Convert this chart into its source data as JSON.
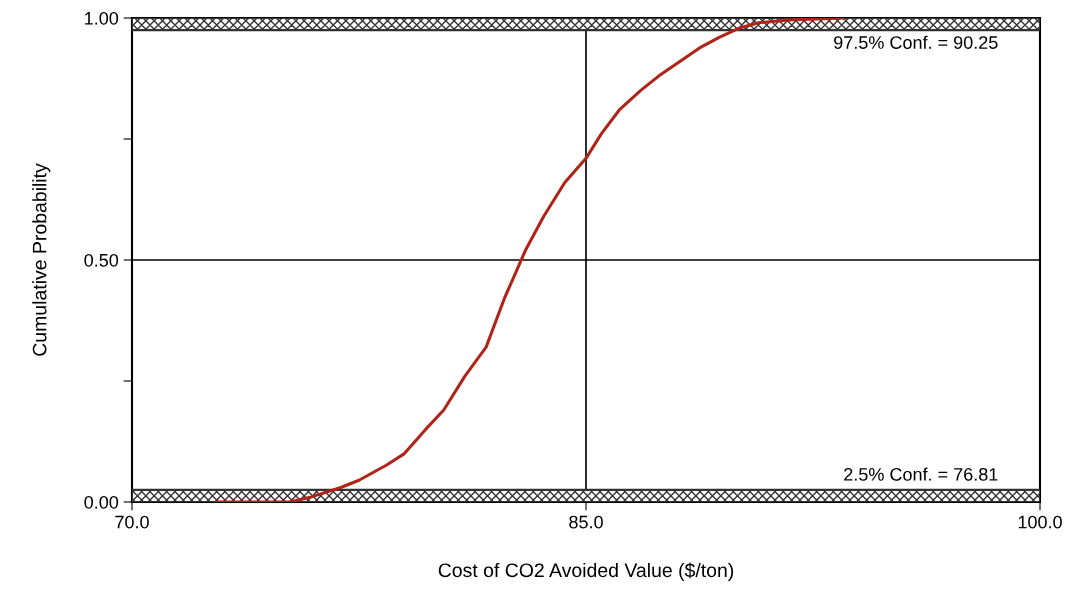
{
  "chart_data": {
    "type": "line",
    "xlabel": "Cost of CO2 Avoided Value ($/ton)",
    "ylabel": "Cumulative Probability",
    "xlim": [
      70,
      100
    ],
    "xticks": [
      {
        "value": 70,
        "label": "70.0"
      },
      {
        "value": 85,
        "label": "85.0"
      },
      {
        "value": 100,
        "label": "100.0"
      }
    ],
    "ylim": [
      0,
      1
    ],
    "yticks": [
      {
        "value": 0,
        "label": "0.00"
      },
      {
        "value": 0.25,
        "label": null
      },
      {
        "value": 0.5,
        "label": "0.50"
      },
      {
        "value": 0.75,
        "label": null
      },
      {
        "value": 1,
        "label": "1.00"
      }
    ],
    "grid": false,
    "marker": "none",
    "line_style": "solid",
    "x": [
      72.8,
      75.2,
      75.9,
      76.9,
      77.5,
      78.4,
      79.0,
      79.7,
      80.3,
      81.0,
      81.7,
      82.3,
      83.0,
      83.6,
      84.3,
      85.0,
      85.5,
      86.1,
      86.8,
      87.4,
      88.1,
      88.8,
      89.4,
      90.1,
      90.7,
      91.7,
      93.5
    ],
    "series": [
      {
        "color": "#b02418",
        "values": [
          0.0,
          0.0,
          0.01,
          0.03,
          0.045,
          0.076,
          0.1,
          0.15,
          0.19,
          0.26,
          0.32,
          0.42,
          0.52,
          0.59,
          0.66,
          0.71,
          0.76,
          0.81,
          0.85,
          0.88,
          0.91,
          0.94,
          0.96,
          0.98,
          0.99,
          0.996,
          1.0
        ]
      }
    ],
    "ref_lines": [
      {
        "axis": "x",
        "value": 85,
        "color": "#000000"
      },
      {
        "axis": "y",
        "value": 0.5,
        "color": "#000000"
      }
    ],
    "bands": [
      {
        "axis": "y",
        "from": 0,
        "to": 0.025,
        "label": "2.5% Conf. = 76.81",
        "color": "#333333"
      },
      {
        "axis": "y",
        "from": 0.975,
        "to": 1.0,
        "label": "97.5% Conf. = 90.25",
        "color": "#333333"
      }
    ]
  }
}
